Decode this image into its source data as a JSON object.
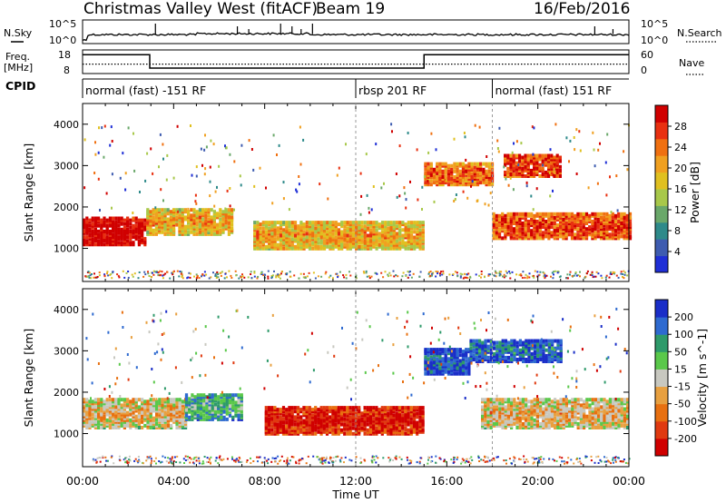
{
  "header": {
    "title": "Christmas Valley West (fitACF)",
    "beam": "Beam 19",
    "date": "16/Feb/2016"
  },
  "strip_labels": {
    "nsky": "N.Sky",
    "nsearch": "N.Search",
    "freq_line1": "Freq.",
    "freq_line2": "[MHz]",
    "nave": "Nave",
    "cpid": "CPID"
  },
  "chart_data": [
    {
      "type": "line",
      "name": "noise",
      "left_axis": {
        "ticks": [
          "10^5",
          "10^0"
        ]
      },
      "right_axis": {
        "ticks": [
          "10^5",
          "10^0"
        ]
      }
    },
    {
      "type": "line",
      "name": "frequency-nave",
      "left_axis": {
        "ticks": [
          "18",
          "8"
        ],
        "range": [
          8,
          18
        ]
      },
      "right_axis": {
        "ticks": [
          "60",
          "0"
        ],
        "range": [
          0,
          60
        ]
      },
      "freq_segments": [
        {
          "from": 0.0,
          "to": 2.95,
          "value": 16.0
        },
        {
          "from": 2.95,
          "to": 15.0,
          "value": 10.3
        },
        {
          "from": 15.0,
          "to": 24.0,
          "value": 16.0
        }
      ],
      "nave_level": 24
    },
    {
      "type": "table",
      "name": "cpid",
      "segments": [
        {
          "label": "normal (fast) -151 RF",
          "start": 0,
          "end": 12
        },
        {
          "label": "rbsp 201 RF",
          "start": 12,
          "end": 18
        },
        {
          "label": "normal (fast) 151 RF",
          "start": 18,
          "end": 24
        }
      ]
    },
    {
      "type": "heatmap",
      "name": "power",
      "xlabel": "",
      "ylabel": "Slant Range [km]",
      "xlim": [
        0,
        24
      ],
      "ylim": [
        200,
        4500
      ],
      "yticks": [
        1000,
        2000,
        3000,
        4000
      ],
      "colorbar": {
        "label": "Power [dB]",
        "ticks": [
          4,
          8,
          12,
          16,
          20,
          24,
          28
        ],
        "colors": [
          "#1f2fd6",
          "#3e5cb0",
          "#2e8a8a",
          "#6aa86a",
          "#a8c84a",
          "#e0c020",
          "#f0a020",
          "#f07010",
          "#e83010",
          "#d00000"
        ]
      },
      "bands": [
        {
          "t0": 0.0,
          "t1": 2.8,
          "r0": 1050,
          "r1": 1700,
          "level": 0.95
        },
        {
          "t0": 2.8,
          "t1": 6.5,
          "r0": 1300,
          "r1": 1900,
          "level": 0.55
        },
        {
          "t0": 7.5,
          "t1": 15.0,
          "r0": 950,
          "r1": 1600,
          "level": 0.55
        },
        {
          "t0": 15.0,
          "t1": 18.0,
          "r0": 2500,
          "r1": 3000,
          "level": 0.7
        },
        {
          "t0": 18.0,
          "t1": 24.0,
          "r0": 1200,
          "r1": 1800,
          "level": 0.75
        },
        {
          "t0": 18.5,
          "t1": 21.0,
          "r0": 2700,
          "r1": 3200,
          "level": 0.8
        }
      ]
    },
    {
      "type": "heatmap",
      "name": "velocity",
      "xlabel": "Time UT",
      "ylabel": "Slant Range [km]",
      "xlim": [
        0,
        24
      ],
      "ylim": [
        200,
        4500
      ],
      "yticks": [
        1000,
        2000,
        3000,
        4000
      ],
      "xticks": [
        "00:00",
        "04:00",
        "08:00",
        "12:00",
        "16:00",
        "20:00",
        "00:00"
      ],
      "colorbar": {
        "label": "Velocity [m s^-1]",
        "ticks": [
          200,
          100,
          50,
          15,
          -15,
          -50,
          -100,
          -200
        ],
        "colors": [
          "#1a2ec8",
          "#2e6ad0",
          "#2e9a6a",
          "#5ac84a",
          "#c8c8c0",
          "#e8a040",
          "#e87010",
          "#e03a10",
          "#d00000"
        ]
      },
      "bands": [
        {
          "t0": 0.0,
          "t1": 4.5,
          "r0": 1100,
          "r1": 1800,
          "level": 0.5
        },
        {
          "t0": 4.5,
          "t1": 7.0,
          "r0": 1300,
          "r1": 1900,
          "level": 0.25
        },
        {
          "t0": 8.0,
          "t1": 15.0,
          "r0": 950,
          "r1": 1600,
          "level": 0.85
        },
        {
          "t0": 15.0,
          "t1": 17.0,
          "r0": 2400,
          "r1": 3000,
          "level": 0.05
        },
        {
          "t0": 17.5,
          "t1": 24.0,
          "r0": 1100,
          "r1": 1800,
          "level": 0.5
        },
        {
          "t0": 17.0,
          "t1": 21.0,
          "r0": 2700,
          "r1": 3200,
          "level": 0.08
        }
      ]
    }
  ]
}
